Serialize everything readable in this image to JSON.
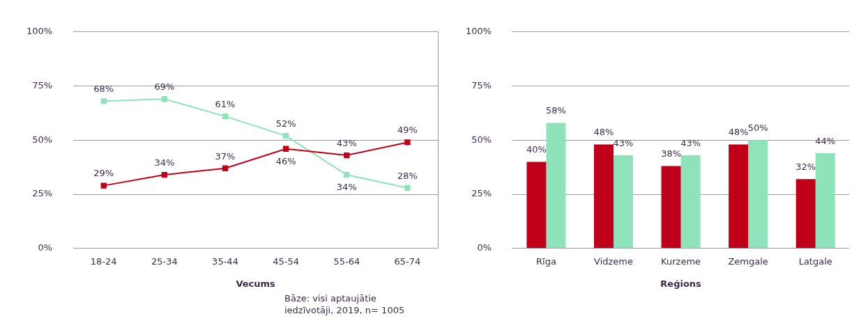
{
  "chart_data": [
    {
      "type": "line",
      "xlabel": "Vecums",
      "categories": [
        "18-24",
        "25-34",
        "35-44",
        "45-54",
        "55-64",
        "65-74"
      ],
      "series": [
        {
          "color": "#c00018",
          "values": [
            29,
            34,
            37,
            46,
            43,
            49
          ],
          "value_labels": [
            "29%",
            "34%",
            "37%",
            "46%",
            "43%",
            "49%"
          ]
        },
        {
          "color": "#8fe3bb",
          "values": [
            68,
            69,
            61,
            52,
            34,
            28
          ],
          "value_labels": [
            "68%",
            "69%",
            "61%",
            "52%",
            "34%",
            "28%"
          ]
        }
      ],
      "ylim": [
        0,
        100
      ],
      "yticks": [
        {
          "value": 0,
          "label": "0%"
        },
        {
          "value": 25,
          "label": "25%"
        },
        {
          "value": 50,
          "label": "50%"
        },
        {
          "value": 75,
          "label": "75%"
        },
        {
          "value": 100,
          "label": "100%"
        }
      ],
      "grid": "y",
      "legend": false,
      "marker": "square",
      "line_style": "solid",
      "annotations": [
        "Bāze: visi aptaujātie iedzīvotāji, 2019, n= 1005"
      ]
    },
    {
      "type": "bar",
      "xlabel": "Reģions",
      "categories": [
        "Rīga",
        "Vidzeme",
        "Kurzeme",
        "Zemgale",
        "Latgale"
      ],
      "series": [
        {
          "color": "#c00018",
          "values": [
            40,
            48,
            38,
            48,
            32
          ],
          "value_labels": [
            "40%",
            "48%",
            "38%",
            "48%",
            "32%"
          ]
        },
        {
          "color": "#8fe3bb",
          "values": [
            58,
            43,
            43,
            50,
            44
          ],
          "value_labels": [
            "58%",
            "43%",
            "43%",
            "50%",
            "44%"
          ]
        }
      ],
      "ylim": [
        0,
        100
      ],
      "yticks": [
        {
          "value": 0,
          "label": "0%"
        },
        {
          "value": 25,
          "label": "25%"
        },
        {
          "value": 50,
          "label": "50%"
        },
        {
          "value": 75,
          "label": "75%"
        },
        {
          "value": 100,
          "label": "100%"
        }
      ],
      "grid": "y",
      "legend": false
    }
  ]
}
